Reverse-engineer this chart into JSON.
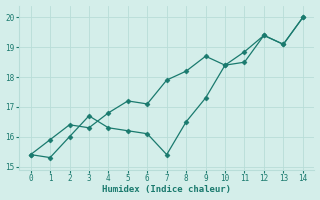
{
  "xlabel": "Humidex (Indice chaleur)",
  "x": [
    0,
    1,
    2,
    3,
    4,
    5,
    6,
    7,
    8,
    9,
    10,
    11,
    12,
    13,
    14
  ],
  "line1": [
    15.4,
    15.3,
    16.0,
    16.7,
    16.3,
    16.2,
    16.1,
    15.4,
    16.5,
    17.3,
    18.4,
    18.5,
    19.4,
    19.1,
    20.0
  ],
  "line2": [
    15.4,
    15.9,
    16.4,
    16.3,
    16.8,
    17.2,
    17.1,
    17.9,
    18.2,
    18.7,
    18.4,
    18.85,
    19.4,
    19.1,
    20.0
  ],
  "line_color": "#1a7a6e",
  "bg_color": "#d4eeea",
  "grid_color": "#b8ddd8",
  "ylim": [
    14.9,
    20.4
  ],
  "yticks": [
    15,
    16,
    17,
    18,
    19,
    20
  ],
  "xticks": [
    0,
    1,
    2,
    3,
    4,
    5,
    6,
    7,
    8,
    9,
    10,
    11,
    12,
    13,
    14
  ],
  "markersize": 2.5,
  "linewidth": 0.9
}
